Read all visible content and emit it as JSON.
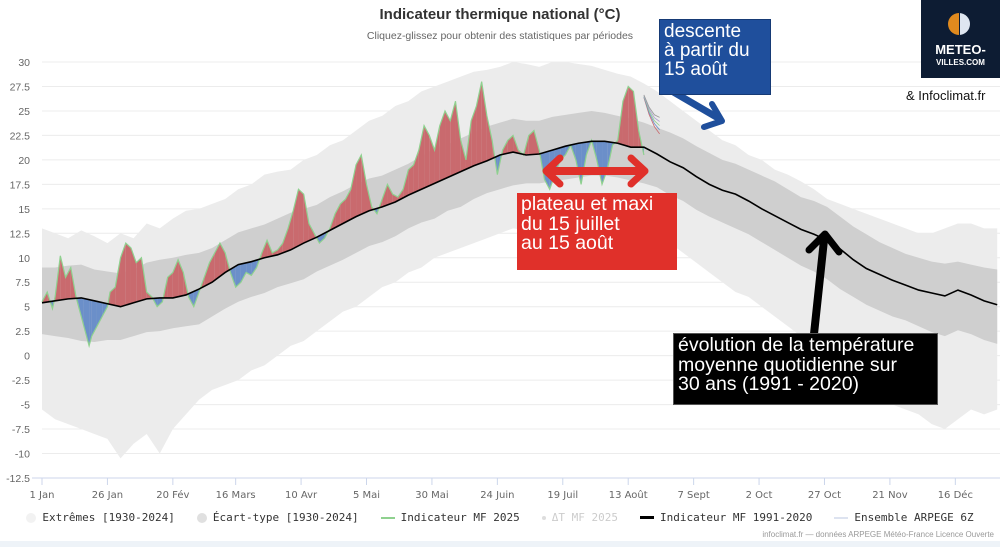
{
  "header": {
    "title": "Indicateur thermique national (°C)",
    "subtitle": "Cliquez-glissez pour obtenir des statistiques par périodes"
  },
  "branding": {
    "logo_line1": "METEO-",
    "logo_line2": "VILLES.COM",
    "partner": "& Infoclimat.fr"
  },
  "annotations": {
    "blue": {
      "lines": [
        "descente",
        "à partir du",
        "15 août"
      ],
      "color": "#1f4f9c"
    },
    "red": {
      "lines": [
        "plateau et maxi",
        "du 15 juillet",
        "au 15 août"
      ],
      "color": "#e0302a"
    },
    "black": {
      "lines": [
        "évolution de la température",
        "moyenne quotidienne sur",
        "30 ans (1991 - 2020)"
      ],
      "color": "#000000"
    }
  },
  "legend": [
    {
      "label": "Extrêmes [1930-2024]",
      "symbol": "dot",
      "color": "#f2f2f2",
      "dimmed": false
    },
    {
      "label": "Écart-type [1930-2024]",
      "symbol": "dot",
      "color": "#e0e0e0",
      "dimmed": false
    },
    {
      "label": "Indicateur MF 2025",
      "symbol": "line",
      "color": "#8fd18f",
      "dimmed": false
    },
    {
      "label": "ΔT MF 2025",
      "symbol": "dot-small",
      "color": "#cccccc",
      "dimmed": true
    },
    {
      "label": "Indicateur MF 1991-2020",
      "symbol": "line",
      "color": "#000000",
      "dimmed": false
    },
    {
      "label": "Ensemble ARPEGE 6Z",
      "symbol": "line",
      "color": "#dde3f0",
      "dimmed": false
    }
  ],
  "credits": "infoclimat.fr — données ARPEGE Météo-France Licence Ouverte",
  "chart_data": {
    "type": "area",
    "title": "Indicateur thermique national (°C)",
    "xlabel": "",
    "ylabel": "",
    "ylim": [
      -12.5,
      30
    ],
    "xlim_days": [
      0,
      365
    ],
    "y_ticks": [
      30,
      27.5,
      25,
      22.5,
      20,
      17.5,
      15,
      12.5,
      10,
      7.5,
      5,
      2.5,
      0,
      -2.5,
      -5,
      -7.5,
      -10,
      -12.5
    ],
    "x_ticks": [
      {
        "day": 0,
        "label": "1 Jan"
      },
      {
        "day": 25,
        "label": "26 Jan"
      },
      {
        "day": 50,
        "label": "20 Fév"
      },
      {
        "day": 74,
        "label": "16 Mars"
      },
      {
        "day": 99,
        "label": "10 Avr"
      },
      {
        "day": 124,
        "label": "5 Mai"
      },
      {
        "day": 149,
        "label": "30 Mai"
      },
      {
        "day": 174,
        "label": "24 Juin"
      },
      {
        "day": 199,
        "label": "19 Juil"
      },
      {
        "day": 224,
        "label": "13 Août"
      },
      {
        "day": 249,
        "label": "7 Sept"
      },
      {
        "day": 274,
        "label": "2 Oct"
      },
      {
        "day": 299,
        "label": "27 Oct"
      },
      {
        "day": 324,
        "label": "21 Nov"
      },
      {
        "day": 349,
        "label": "16 Déc"
      }
    ],
    "grid": true,
    "legend_position": "bottom",
    "climatology_days": [
      0,
      5,
      10,
      15,
      20,
      25,
      30,
      35,
      40,
      45,
      50,
      55,
      60,
      65,
      70,
      75,
      80,
      85,
      90,
      95,
      100,
      105,
      110,
      115,
      120,
      125,
      130,
      135,
      140,
      145,
      150,
      155,
      160,
      165,
      170,
      175,
      180,
      185,
      190,
      195,
      200,
      205,
      210,
      215,
      220,
      225,
      230,
      235,
      240,
      245,
      250,
      255,
      260,
      265,
      270,
      275,
      280,
      285,
      290,
      295,
      300,
      305,
      310,
      315,
      320,
      325,
      330,
      335,
      340,
      345,
      350,
      355,
      360,
      365
    ],
    "series": [
      {
        "name": "Indicateur MF 1991-2020",
        "color": "#000000",
        "values": [
          5.4,
          5.6,
          5.8,
          5.9,
          5.6,
          5.3,
          5.0,
          5.4,
          5.8,
          5.9,
          5.9,
          6.2,
          6.8,
          7.5,
          8.5,
          9.3,
          9.6,
          10.0,
          10.3,
          10.8,
          11.5,
          12.1,
          12.8,
          13.5,
          14.2,
          14.8,
          15.2,
          15.7,
          16.4,
          17.0,
          17.6,
          18.2,
          18.8,
          19.4,
          19.9,
          20.5,
          20.8,
          20.5,
          20.6,
          21.0,
          21.4,
          21.7,
          21.9,
          21.9,
          21.7,
          21.3,
          21.3,
          20.6,
          19.8,
          19.2,
          18.3,
          17.5,
          16.9,
          16.5,
          15.8,
          15.0,
          14.3,
          13.6,
          12.9,
          12.4,
          11.8,
          10.9,
          9.8,
          8.9,
          8.3,
          7.7,
          7.2,
          6.7,
          6.4,
          6.1,
          6.7,
          6.2,
          5.6,
          5.2
        ]
      },
      {
        "name": "Écart-type [1930-2024] upper",
        "color": "#cfcfcf",
        "values": [
          9.0,
          9.0,
          9.2,
          9.3,
          8.8,
          8.6,
          8.4,
          8.8,
          9.5,
          9.8,
          10.0,
          10.3,
          10.5,
          11.0,
          11.8,
          12.6,
          13.0,
          13.4,
          14.0,
          14.6,
          15.0,
          15.4,
          16.2,
          16.8,
          17.5,
          18.1,
          18.4,
          19.0,
          19.6,
          20.4,
          21.2,
          21.6,
          22.2,
          22.8,
          23.4,
          23.8,
          24.2,
          24.0,
          24.0,
          24.4,
          24.6,
          24.8,
          25.0,
          24.8,
          24.5,
          24.2,
          23.8,
          23.3,
          22.8,
          22.2,
          21.4,
          20.7,
          20.0,
          19.6,
          19.0,
          18.4,
          17.8,
          17.0,
          16.2,
          15.8,
          15.2,
          14.2,
          13.2,
          12.4,
          11.6,
          11.0,
          10.4,
          10.0,
          9.6,
          9.4,
          9.6,
          9.3,
          9.0,
          8.8
        ]
      },
      {
        "name": "Écart-type [1930-2024] lower",
        "color": "#cfcfcf",
        "values": [
          2.2,
          2.0,
          1.8,
          1.5,
          1.4,
          1.6,
          1.6,
          2.0,
          2.4,
          2.5,
          2.8,
          3.0,
          3.2,
          4.0,
          4.8,
          5.5,
          6.0,
          6.4,
          7.0,
          7.4,
          7.8,
          8.6,
          9.2,
          9.8,
          10.5,
          11.2,
          11.6,
          12.2,
          13.0,
          13.6,
          14.0,
          14.8,
          15.2,
          16.0,
          16.6,
          17.0,
          17.4,
          17.6,
          17.6,
          17.8,
          18.0,
          18.2,
          18.4,
          18.4,
          18.2,
          17.9,
          17.6,
          17.2,
          16.4,
          15.8,
          14.9,
          14.2,
          13.6,
          13.0,
          12.4,
          11.6,
          10.8,
          10.0,
          9.2,
          8.6,
          7.8,
          6.8,
          6.0,
          5.2,
          4.6,
          4.0,
          3.6,
          3.0,
          2.4,
          2.0,
          2.6,
          2.2,
          1.6,
          1.2
        ]
      },
      {
        "name": "Extrêmes [1930-2024] upper",
        "color": "#ececec",
        "values": [
          13.0,
          12.5,
          12.0,
          12.8,
          12.2,
          11.5,
          12.5,
          12.0,
          13.5,
          13.0,
          14.0,
          14.8,
          15.0,
          15.5,
          16.0,
          17.0,
          17.5,
          18.5,
          18.8,
          19.0,
          20.0,
          20.5,
          21.5,
          22.0,
          23.0,
          24.0,
          24.5,
          25.5,
          26.0,
          27.0,
          27.5,
          28.0,
          28.5,
          29.0,
          29.2,
          29.5,
          30.0,
          29.8,
          29.5,
          30.0,
          30.0,
          29.8,
          29.6,
          29.2,
          28.8,
          28.5,
          27.8,
          27.0,
          26.0,
          25.0,
          24.0,
          23.0,
          22.0,
          21.5,
          20.5,
          20.0,
          19.0,
          18.5,
          17.8,
          17.0,
          16.0,
          15.5,
          15.0,
          14.5,
          14.0,
          13.5,
          13.0,
          12.5,
          12.5,
          13.0,
          13.5,
          13.5,
          13.0,
          13.0
        ]
      },
      {
        "name": "Extrêmes [1930-2024] lower",
        "color": "#ececec",
        "values": [
          -5.5,
          -6.5,
          -7.0,
          -7.5,
          -8.0,
          -8.5,
          -10.5,
          -9.0,
          -8.0,
          -10.0,
          -7.5,
          -6.0,
          -4.5,
          -3.5,
          -3.0,
          -2.5,
          -1.5,
          -1.0,
          0.0,
          1.0,
          1.5,
          2.5,
          3.5,
          4.5,
          5.0,
          6.0,
          7.0,
          7.5,
          8.5,
          9.0,
          10.0,
          10.5,
          11.0,
          11.5,
          12.0,
          12.5,
          13.0,
          12.8,
          12.8,
          13.0,
          13.2,
          13.5,
          13.8,
          13.5,
          13.2,
          12.8,
          12.5,
          12.0,
          11.5,
          10.5,
          9.5,
          8.5,
          7.5,
          6.5,
          6.0,
          5.0,
          4.0,
          3.0,
          2.0,
          1.0,
          0.0,
          -1.5,
          -2.5,
          -3.5,
          -4.5,
          -5.0,
          -5.5,
          -6.0,
          -7.0,
          -7.5,
          -6.5,
          -5.5,
          -6.0,
          -5.5
        ]
      },
      {
        "name": "Indicateur MF 2025",
        "color": "#8fd18f",
        "days": [
          0,
          2,
          4,
          5,
          7,
          9,
          11,
          13,
          14,
          16,
          18,
          19,
          21,
          23,
          25,
          26,
          28,
          30,
          32,
          34,
          36,
          38,
          40,
          42,
          44,
          46,
          48,
          50,
          52,
          54,
          56,
          58,
          60,
          62,
          64,
          66,
          68,
          70,
          72,
          74,
          76,
          78,
          80,
          82,
          84,
          86,
          88,
          90,
          92,
          94,
          96,
          98,
          100,
          102,
          104,
          106,
          108,
          110,
          112,
          114,
          116,
          118,
          120,
          122,
          124,
          126,
          128,
          130,
          132,
          134,
          136,
          138,
          140,
          142,
          144,
          146,
          148,
          150,
          152,
          154,
          156,
          158,
          160,
          162,
          164,
          166,
          168,
          170,
          172,
          174,
          176,
          178,
          180,
          182,
          184,
          186,
          188,
          190,
          192,
          194,
          196,
          198,
          200,
          202,
          204,
          206,
          208,
          210,
          212,
          214,
          216,
          218,
          220,
          222,
          224,
          226,
          228,
          230
        ],
        "values": [
          5.5,
          6.5,
          4.8,
          6.0,
          10.2,
          8.0,
          9.0,
          6.0,
          5.0,
          3.0,
          1.0,
          2.0,
          3.0,
          4.0,
          5.0,
          6.5,
          7.0,
          10.0,
          11.5,
          11.0,
          9.5,
          10.0,
          6.5,
          6.0,
          5.0,
          5.5,
          8.0,
          8.5,
          9.8,
          8.5,
          6.0,
          5.0,
          6.5,
          8.0,
          9.5,
          10.5,
          11.5,
          10.5,
          8.5,
          7.0,
          7.5,
          8.5,
          8.2,
          9.0,
          10.5,
          11.8,
          10.5,
          10.8,
          11.5,
          13.0,
          14.8,
          17.0,
          16.5,
          13.5,
          12.5,
          11.5,
          12.0,
          13.0,
          14.5,
          15.5,
          16.0,
          17.0,
          19.5,
          20.5,
          17.5,
          15.2,
          14.5,
          16.0,
          17.5,
          16.5,
          16.2,
          17.0,
          19.0,
          19.5,
          21.0,
          23.5,
          22.5,
          21.0,
          23.5,
          25.0,
          24.0,
          26.0,
          22.0,
          20.0,
          24.0,
          25.5,
          28.0,
          24.5,
          22.0,
          18.5,
          21.0,
          22.0,
          22.5,
          21.0,
          20.5,
          22.5,
          23.0,
          21.0,
          18.0,
          17.0,
          18.5,
          20.0,
          20.5,
          21.5,
          20.0,
          17.5,
          20.5,
          22.0,
          20.0,
          17.5,
          19.0,
          21.5,
          22.0,
          26.0,
          27.5,
          27.0,
          23.0,
          20.5
        ]
      },
      {
        "name": "Ensemble ARPEGE 6Z",
        "color": "#dde3f0",
        "days": [
          230,
          232,
          234,
          236
        ],
        "values": [
          26.5,
          25.0,
          24.0,
          23.5
        ]
      }
    ],
    "anomaly_fill": {
      "name": "ΔT MF 2025",
      "above_color": "#c96a6e",
      "below_color": "#6b8fc9"
    }
  }
}
